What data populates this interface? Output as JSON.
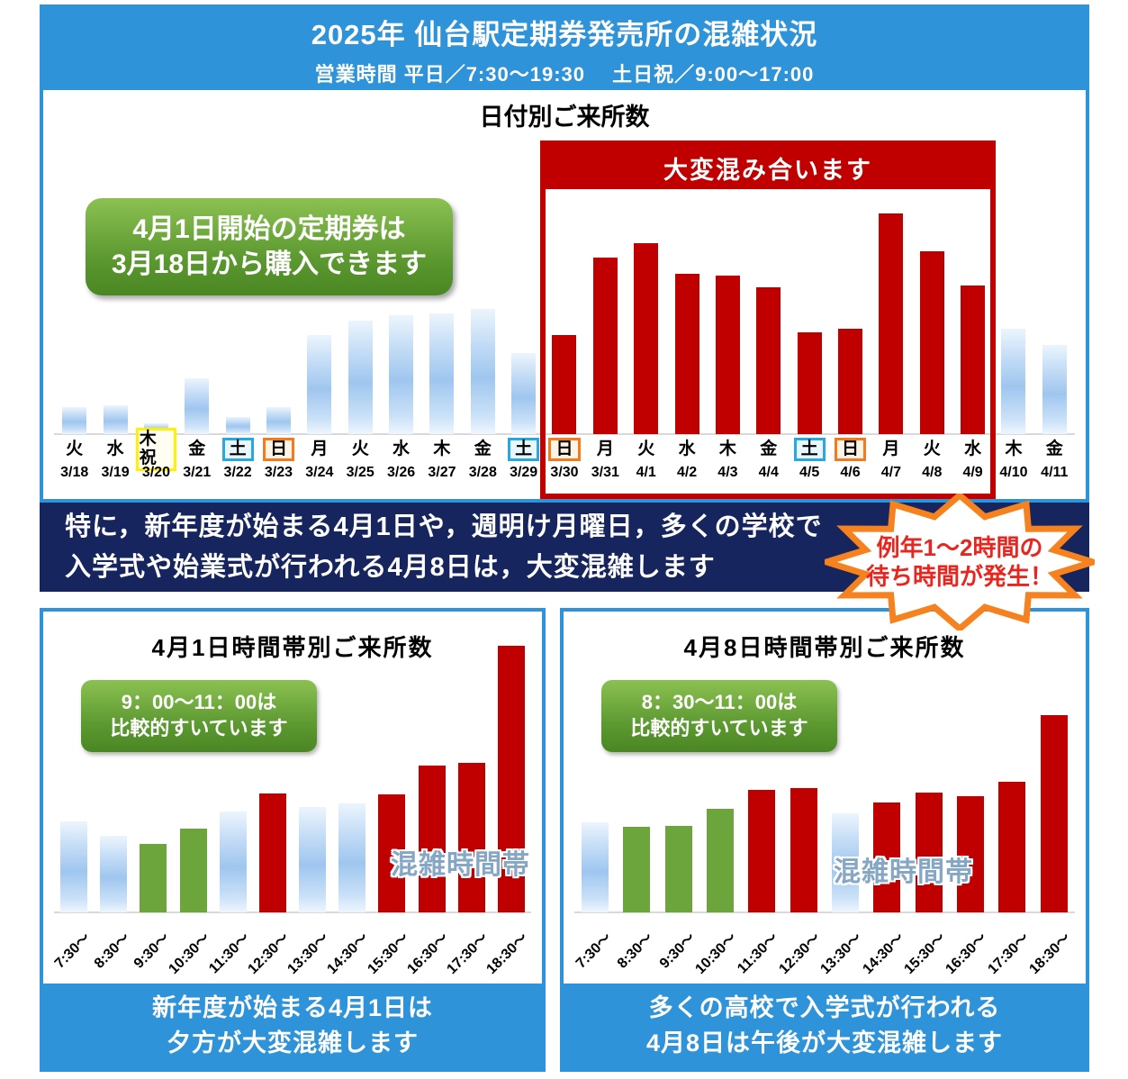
{
  "header": {
    "title": "2025年 仙台駅定期券発売所の混雑状況",
    "hours": "営業時間 平日／7:30～19:30　 土日祝／9:00～17:00"
  },
  "daily_chart": {
    "title": "日付別ご来所数",
    "promo_line1": "4月1日開始の定期券は",
    "promo_line2": "3月18日から購入できます",
    "crowd_box_label": "大変混み合います"
  },
  "notice_banner": {
    "line1": "特に，新年度が始まる4月1日や，週明け月曜日，多くの学校で",
    "line2": "入学式や始業式が行われる4月8日は，大変混雑します"
  },
  "starburst": {
    "line1": "例年1～2時間の",
    "line2": "待ち時間が発生！"
  },
  "april1_chart": {
    "title": "4月1日時間帯別ご来所数",
    "relief_line1": "9：00～11：00は",
    "relief_line2": "比較的すいています",
    "congestion_label": "混雑時間帯",
    "caption_line1": "新年度が始まる4月1日は",
    "caption_line2": "夕方が大変混雑します"
  },
  "april8_chart": {
    "title": "4月8日時間帯別ご来所数",
    "relief_line1": "8：30～11：00は",
    "relief_line2": "比較的すいています",
    "congestion_label": "混雑時間帯",
    "caption_line1": "多くの高校で入学式が行われる",
    "caption_line2": "4月8日は午後が大変混雑します"
  },
  "colors": {
    "accent_blue": "#2E93D8",
    "navy": "#17255E",
    "bar_red": "#C00000",
    "bar_green": "#6DA53D",
    "bar_blue_mid": "#9FC6EF",
    "holiday_box_border": "#FFF100",
    "saturday_box_border": "#2BA7E0",
    "sunday_box_border": "#F47A20",
    "starburst_border": "#F5821F",
    "starburst_text": "#E8251F"
  },
  "chart_data": [
    {
      "type": "bar",
      "kind": "daily",
      "title": "日付別ご来所数",
      "x": [
        "3/18",
        "3/19",
        "3/20",
        "3/21",
        "3/22",
        "3/23",
        "3/24",
        "3/25",
        "3/26",
        "3/27",
        "3/28",
        "3/29",
        "3/30",
        "3/31",
        "4/1",
        "4/2",
        "4/3",
        "4/4",
        "4/5",
        "4/6",
        "4/7",
        "4/8",
        "4/9",
        "4/10",
        "4/11"
      ],
      "weekday": [
        "火",
        "水",
        "木祝",
        "金",
        "土",
        "日",
        "月",
        "火",
        "水",
        "木",
        "金",
        "土",
        "日",
        "月",
        "火",
        "水",
        "木",
        "金",
        "土",
        "日",
        "月",
        "火",
        "水",
        "木",
        "金"
      ],
      "markers": [
        "",
        "",
        "hol",
        "",
        "sat",
        "sun",
        "",
        "",
        "",
        "",
        "",
        "sat",
        "sun",
        "",
        "",
        "",
        "",
        "",
        "sat",
        "sun",
        "",
        "",
        "",
        "",
        ""
      ],
      "values": [
        30,
        32,
        12,
        62,
        19,
        30,
        110,
        126,
        132,
        134,
        139,
        90,
        110,
        196,
        212,
        178,
        176,
        163,
        113,
        117,
        245,
        203,
        165,
        117,
        99
      ],
      "colors": [
        "blue",
        "blue",
        "blue",
        "blue",
        "blue",
        "blue",
        "blue",
        "blue",
        "blue",
        "blue",
        "blue",
        "blue",
        "red",
        "red",
        "red",
        "red",
        "red",
        "red",
        "red",
        "red",
        "red",
        "red",
        "red",
        "blue",
        "blue"
      ],
      "highlight_range": [
        "3/30",
        "4/9"
      ],
      "ylabel": "",
      "axis_note": "no numeric y-axis shown; values are relative bar heights in px"
    },
    {
      "type": "bar",
      "kind": "hourly",
      "title": "4月1日時間帯別ご来所数",
      "x": [
        "7:30～",
        "8:30～",
        "9:30～",
        "10:30～",
        "11:30～",
        "12:30～",
        "13:30～",
        "14:30～",
        "15:30～",
        "16:30～",
        "17:30～",
        "18:30～"
      ],
      "values": [
        101,
        85,
        76,
        93,
        112,
        132,
        117,
        121,
        131,
        163,
        166,
        296
      ],
      "colors": [
        "blue",
        "blue",
        "green",
        "green",
        "blue",
        "red",
        "blue",
        "blue",
        "red",
        "red",
        "red",
        "red"
      ],
      "ylabel": "",
      "axis_note": "no numeric y-axis shown; values are relative bar heights in px"
    },
    {
      "type": "bar",
      "kind": "hourly",
      "title": "4月8日時間帯別ご来所数",
      "x": [
        "7:30～",
        "8:30～",
        "9:30～",
        "10:30～",
        "11:30～",
        "12:30～",
        "13:30～",
        "14:30～",
        "15:30～",
        "16:30～",
        "17:30～",
        "18:30～"
      ],
      "values": [
        100,
        95,
        96,
        115,
        136,
        138,
        110,
        122,
        133,
        129,
        145,
        219
      ],
      "colors": [
        "blue",
        "green",
        "green",
        "green",
        "red",
        "red",
        "blue",
        "red",
        "red",
        "red",
        "red",
        "red"
      ],
      "ylabel": "",
      "axis_note": "no numeric y-axis shown; values are relative bar heights in px"
    }
  ]
}
